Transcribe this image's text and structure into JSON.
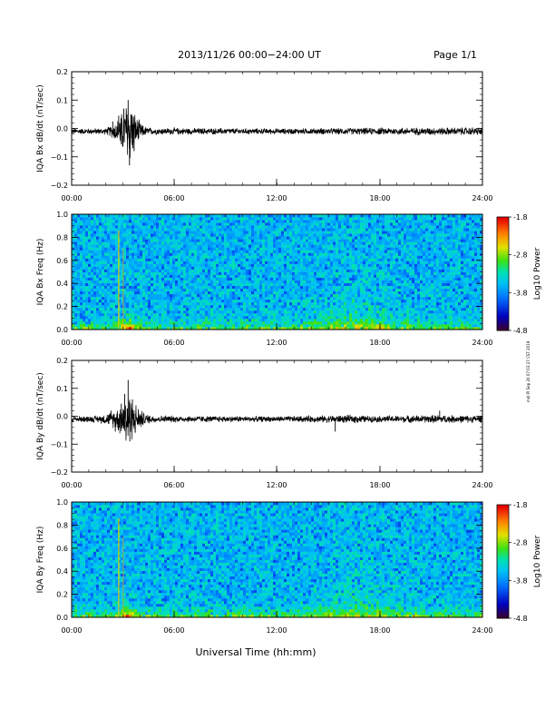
{
  "header": {
    "title": "2013/11/26  00:00−24:00 UT",
    "page": "Page 1/1"
  },
  "footer": {
    "xlabel": "Universal Time (hh:mm)"
  },
  "side_note": "mdI Pl Sep 20 07:03:27 CST 2019",
  "colorbar": {
    "label": "Log10 Power",
    "ticks": [
      "-1.8",
      "-2.8",
      "-3.8",
      "-4.8"
    ],
    "colors": [
      "#3a0030",
      "#0000c0",
      "#0070ff",
      "#00c8ff",
      "#00e0a0",
      "#40e000",
      "#e0e000",
      "#ff8000",
      "#e80000"
    ]
  },
  "chart_data": [
    {
      "type": "line",
      "ylabel": "IQA Bx dB/dt (nT/sec)",
      "xlim": [
        0,
        24
      ],
      "ylim": [
        -0.2,
        0.2
      ],
      "x_ticks": [
        "00:00",
        "06:00",
        "12:00",
        "18:00",
        "24:00"
      ],
      "y_ticks": [
        "0.2",
        "0.1",
        "0.0",
        "−0.1",
        "−0.2"
      ],
      "y_tick_values": [
        0.2,
        0.1,
        0.0,
        -0.1,
        -0.2
      ],
      "baseline": -0.01,
      "noise_amplitude": 0.008,
      "envelope": [
        [
          0,
          0.008
        ],
        [
          2.0,
          0.009
        ],
        [
          2.4,
          0.02
        ],
        [
          2.7,
          0.035
        ],
        [
          3.0,
          0.06
        ],
        [
          3.2,
          0.09
        ],
        [
          3.35,
          0.1
        ],
        [
          3.55,
          0.07
        ],
        [
          3.8,
          0.04
        ],
        [
          4.2,
          0.015
        ],
        [
          4.6,
          0.01
        ],
        [
          12,
          0.008
        ],
        [
          17.5,
          0.01
        ],
        [
          22,
          0.011
        ],
        [
          24,
          0.011
        ]
      ],
      "spikes": [
        [
          2.4,
          0.035
        ],
        [
          2.75,
          0.055
        ],
        [
          2.9,
          -0.045
        ],
        [
          3.05,
          0.08
        ],
        [
          3.3,
          0.11
        ],
        [
          3.38,
          -0.12
        ],
        [
          3.5,
          0.06
        ],
        [
          3.65,
          -0.07
        ]
      ]
    },
    {
      "type": "heatmap",
      "ylabel": "IQA Bx Freq (Hz)",
      "xlim": [
        0,
        24
      ],
      "ylim": [
        0.0,
        1.0
      ],
      "x_ticks": [
        "00:00",
        "06:00",
        "12:00",
        "18:00",
        "24:00"
      ],
      "y_ticks": [
        "1.0",
        "0.8",
        "0.6",
        "0.4",
        "0.2",
        "0.0"
      ],
      "y_tick_values": [
        1.0,
        0.8,
        0.6,
        0.4,
        0.2,
        0.0
      ],
      "z_range": [
        -4.8,
        -1.8
      ],
      "features": "broadband noise near -3.8; enhanced power below 0.1 Hz throughout, strongest 02:30-04:00 and 14:00-19:00; vertical streak near 02:45"
    },
    {
      "type": "line",
      "ylabel": "IQA By dB/dt (nT/sec)",
      "xlim": [
        0,
        24
      ],
      "ylim": [
        -0.2,
        0.2
      ],
      "x_ticks": [
        "00:00",
        "06:00",
        "12:00",
        "18:00",
        "24:00"
      ],
      "y_ticks": [
        "0.2",
        "0.1",
        "0.0",
        "−0.1",
        "−0.2"
      ],
      "y_tick_values": [
        0.2,
        0.1,
        0.0,
        -0.1,
        -0.2
      ],
      "baseline": -0.01,
      "noise_amplitude": 0.008,
      "envelope": [
        [
          0,
          0.008
        ],
        [
          1.5,
          0.01
        ],
        [
          2.2,
          0.018
        ],
        [
          2.6,
          0.03
        ],
        [
          3.0,
          0.055
        ],
        [
          3.3,
          0.09
        ],
        [
          3.5,
          0.06
        ],
        [
          3.9,
          0.035
        ],
        [
          4.3,
          0.015
        ],
        [
          5.0,
          0.01
        ],
        [
          12,
          0.008
        ],
        [
          16.8,
          0.012
        ],
        [
          17.3,
          0.009
        ],
        [
          21.5,
          0.012
        ],
        [
          24,
          0.01
        ]
      ],
      "spikes": [
        [
          2.3,
          0.03
        ],
        [
          2.55,
          -0.045
        ],
        [
          2.9,
          0.055
        ],
        [
          3.1,
          0.09
        ],
        [
          3.3,
          0.14
        ],
        [
          3.4,
          -0.08
        ],
        [
          3.55,
          0.07
        ],
        [
          15.4,
          -0.045
        ],
        [
          21.5,
          0.03
        ]
      ]
    },
    {
      "type": "heatmap",
      "ylabel": "IQA By Freq (Hz)",
      "xlim": [
        0,
        24
      ],
      "ylim": [
        0.0,
        1.0
      ],
      "x_ticks": [
        "00:00",
        "06:00",
        "12:00",
        "18:00",
        "24:00"
      ],
      "y_ticks": [
        "1.0",
        "0.8",
        "0.6",
        "0.4",
        "0.2",
        "0.0"
      ],
      "y_tick_values": [
        1.0,
        0.8,
        0.6,
        0.4,
        0.2,
        0.0
      ],
      "z_range": [
        -4.8,
        -1.8
      ],
      "features": "broadband noise near -3.8; enhanced power below 0.1 Hz throughout, strongest 02:30-04:00 and 15:30-18:30; vertical streak near 02:45"
    }
  ]
}
